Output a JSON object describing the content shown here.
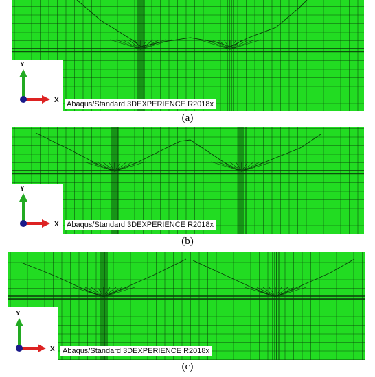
{
  "panels": [
    {
      "id": "a",
      "caption": "(a)",
      "label": "Abaqus/Standard 3DEXPERIENCE R2018x",
      "axis_y": "Y",
      "axis_x": "X"
    },
    {
      "id": "b",
      "caption": "(b)",
      "label": "Abaqus/Standard 3DEXPERIENCE R2018x",
      "axis_y": "Y",
      "axis_x": "X"
    },
    {
      "id": "c",
      "caption": "(c)",
      "label": "Abaqus/Standard 3DEXPERIENCE R2018x",
      "axis_y": "Y",
      "axis_x": "X"
    }
  ],
  "colors": {
    "mesh_fill": "#22dc22",
    "mesh_line": "#0a3a0a",
    "axis_y_arrow": "#22aa22",
    "axis_x_arrow": "#dd2222",
    "axis_origin": "#1a1a8a"
  }
}
